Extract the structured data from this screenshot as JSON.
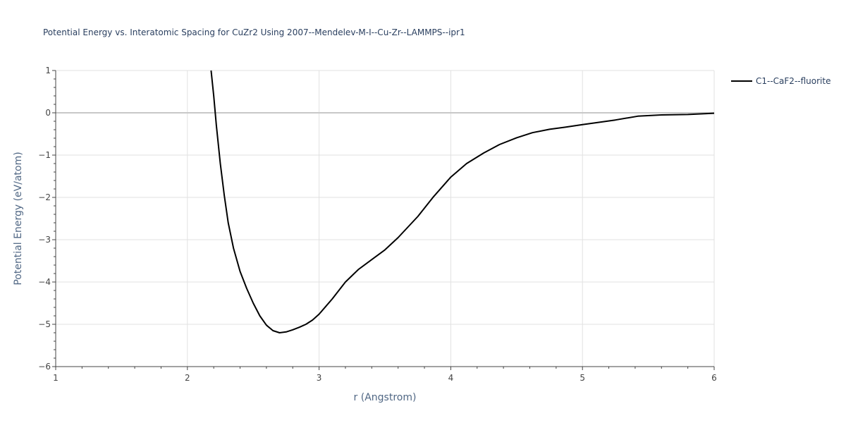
{
  "chart_data": {
    "type": "line",
    "title": "Potential Energy vs. Interatomic Spacing for CuZr2 Using 2007--Mendelev-M-I--Cu-Zr--LAMMPS--ipr1",
    "xlabel": "r (Angstrom)",
    "ylabel": "Potential Energy (eV/atom)",
    "xlim": [
      1,
      6
    ],
    "ylim": [
      -6,
      1
    ],
    "xticks": [
      "1",
      "2",
      "3",
      "4",
      "5",
      "6"
    ],
    "yticks": [
      "1",
      "0",
      "−1",
      "−2",
      "−3",
      "−4",
      "−5",
      "−6"
    ],
    "grid": true,
    "legend_position": "top-right",
    "series": [
      {
        "name": "C1--CaF2--fluorite",
        "color": "#000000",
        "x": [
          2.18,
          2.2,
          2.22,
          2.25,
          2.28,
          2.31,
          2.35,
          2.4,
          2.45,
          2.5,
          2.55,
          2.6,
          2.65,
          2.7,
          2.75,
          2.8,
          2.85,
          2.9,
          2.95,
          3.0,
          3.05,
          3.1,
          3.15,
          3.2,
          3.25,
          3.3,
          3.4,
          3.5,
          3.6,
          3.75,
          3.87,
          4.0,
          4.12,
          4.25,
          4.37,
          4.5,
          4.62,
          4.75,
          4.87,
          5.0,
          5.25,
          5.42,
          5.6,
          5.8,
          6.0
        ],
        "y": [
          1.0,
          0.4,
          -0.3,
          -1.2,
          -1.95,
          -2.6,
          -3.2,
          -3.75,
          -4.15,
          -4.5,
          -4.8,
          -5.02,
          -5.15,
          -5.2,
          -5.18,
          -5.13,
          -5.07,
          -5.0,
          -4.9,
          -4.76,
          -4.58,
          -4.4,
          -4.2,
          -4.0,
          -3.85,
          -3.7,
          -3.47,
          -3.24,
          -2.95,
          -2.45,
          -1.98,
          -1.52,
          -1.2,
          -0.95,
          -0.75,
          -0.59,
          -0.47,
          -0.39,
          -0.34,
          -0.28,
          -0.17,
          -0.08,
          -0.05,
          -0.04,
          -0.01
        ]
      }
    ]
  }
}
